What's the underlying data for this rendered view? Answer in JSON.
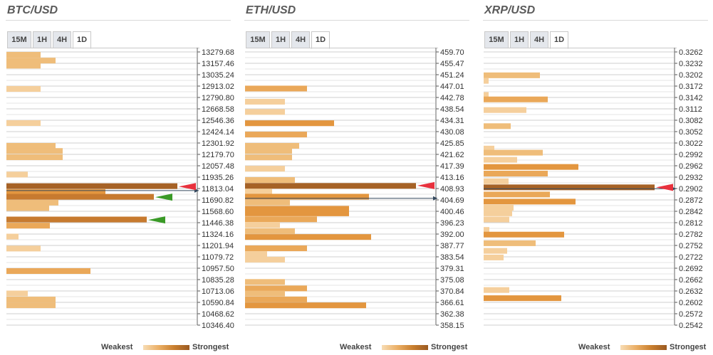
{
  "colors": {
    "levels": [
      "#f5cf9c",
      "#efbd7a",
      "#eaa859",
      "#e3963f",
      "#c77a2f",
      "#a66226"
    ],
    "grid": "#cfcfcf",
    "price_line": "#34495e",
    "arrow_red": "#e8313d",
    "arrow_green": "#3a9a27"
  },
  "legend": {
    "weakest": "Weakest",
    "strongest": "Strongest"
  },
  "panels": [
    {
      "title": "BTC/USD",
      "tabs": [
        "15M",
        "1H",
        "4H",
        "1D"
      ],
      "active_tab": "1D"
    },
    {
      "title": "ETH/USD",
      "tabs": [
        "15M",
        "1H",
        "4H",
        "1D"
      ],
      "active_tab": "1D"
    },
    {
      "title": "XRP/USD",
      "tabs": [
        "15M",
        "1H",
        "4H",
        "1D"
      ],
      "active_tab": "1D"
    }
  ],
  "chart_data": [
    {
      "type": "bar",
      "title": "BTC/USD",
      "orientation": "horizontal",
      "tick_labels": [
        "13279.68",
        "13157.46",
        "13035.24",
        "12913.02",
        "12790.80",
        "12668.58",
        "12546.36",
        "12424.14",
        "12301.92",
        "12179.70",
        "12057.48",
        "11935.26",
        "11813.04",
        "11690.82",
        "11568.60",
        "11446.38",
        "11324.16",
        "11201.94",
        "11079.72",
        "10957.50",
        "10835.28",
        "10713.06",
        "10590.84",
        "10468.62",
        "10346.40"
      ],
      "ylim": [
        10346.4,
        13279.68
      ],
      "xlim": [
        0,
        280
      ],
      "current_price": 11791.0,
      "bars": [
        {
          "price": 13249.1,
          "strength": 48,
          "level": 1
        },
        {
          "price": 13187.1,
          "strength": 69,
          "level": 1
        },
        {
          "price": 13132.1,
          "strength": 48,
          "level": 1
        },
        {
          "price": 12882.5,
          "strength": 48,
          "level": 0
        },
        {
          "price": 12515.8,
          "strength": 48,
          "level": 0
        },
        {
          "price": 12271.3,
          "strength": 69,
          "level": 1
        },
        {
          "price": 12216.3,
          "strength": 79,
          "level": 1
        },
        {
          "price": 12149.1,
          "strength": 79,
          "level": 1
        },
        {
          "price": 11963.3,
          "strength": 30,
          "level": 0
        },
        {
          "price": 11838.6,
          "strength": 240,
          "level": 5
        },
        {
          "price": 11774.5,
          "strength": 139,
          "level": 3
        },
        {
          "price": 11724.3,
          "strength": 207,
          "level": 4
        },
        {
          "price": 11661.6,
          "strength": 73,
          "level": 1
        },
        {
          "price": 11602.9,
          "strength": 60,
          "level": 1
        },
        {
          "price": 11480.7,
          "strength": 197,
          "level": 4
        },
        {
          "price": 11414.7,
          "strength": 61,
          "level": 2
        },
        {
          "price": 11297.4,
          "strength": 17,
          "level": 0
        },
        {
          "price": 11168.7,
          "strength": 48,
          "level": 0
        },
        {
          "price": 10926.9,
          "strength": 118,
          "level": 2
        },
        {
          "price": 10686.5,
          "strength": 30,
          "level": 0
        },
        {
          "price": 10621.3,
          "strength": 69,
          "level": 1
        },
        {
          "price": 10559.6,
          "strength": 69,
          "level": 1
        }
      ],
      "markers": [
        {
          "price": 11834.0,
          "color": "red"
        },
        {
          "price": 11720.0,
          "color": "green"
        },
        {
          "price": 11476.0,
          "color": "green"
        }
      ]
    },
    {
      "type": "bar",
      "title": "ETH/USD",
      "orientation": "horizontal",
      "tick_labels": [
        "459.70",
        "455.47",
        "451.24",
        "447.01",
        "442.78",
        "438.54",
        "434.31",
        "430.08",
        "425.85",
        "421.62",
        "417.39",
        "413.16",
        "408.93",
        "404.69",
        "400.46",
        "396.23",
        "392.00",
        "387.77",
        "383.54",
        "379.31",
        "375.08",
        "370.84",
        "366.61",
        "362.38",
        "358.15"
      ],
      "ylim": [
        358.15,
        459.7
      ],
      "xlim": [
        0,
        280
      ],
      "current_price": 405.28,
      "bars": [
        {
          "price": 446.1,
          "strength": 87,
          "level": 2
        },
        {
          "price": 441.2,
          "strength": 56,
          "level": 0
        },
        {
          "price": 437.4,
          "strength": 56,
          "level": 0
        },
        {
          "price": 433.2,
          "strength": 125,
          "level": 3
        },
        {
          "price": 429.0,
          "strength": 87,
          "level": 2
        },
        {
          "price": 424.8,
          "strength": 76,
          "level": 1
        },
        {
          "price": 422.9,
          "strength": 66,
          "level": 1
        },
        {
          "price": 420.5,
          "strength": 66,
          "level": 1
        },
        {
          "price": 416.3,
          "strength": 56,
          "level": 0
        },
        {
          "price": 412.1,
          "strength": 70,
          "level": 1
        },
        {
          "price": 409.9,
          "strength": 240,
          "level": 5
        },
        {
          "price": 407.8,
          "strength": 38,
          "level": 0
        },
        {
          "price": 405.9,
          "strength": 174,
          "level": 3
        },
        {
          "price": 403.7,
          "strength": 63,
          "level": 1
        },
        {
          "price": 401.4,
          "strength": 146,
          "level": 3
        },
        {
          "price": 399.7,
          "strength": 146,
          "level": 3
        },
        {
          "price": 397.5,
          "strength": 101,
          "level": 2
        },
        {
          "price": 395.4,
          "strength": 49,
          "level": 0
        },
        {
          "price": 393.1,
          "strength": 70,
          "level": 1
        },
        {
          "price": 390.9,
          "strength": 177,
          "level": 3
        },
        {
          "price": 386.7,
          "strength": 87,
          "level": 2
        },
        {
          "price": 384.6,
          "strength": 31,
          "level": 0
        },
        {
          "price": 382.5,
          "strength": 56,
          "level": 0
        },
        {
          "price": 374.2,
          "strength": 56,
          "level": 1
        },
        {
          "price": 371.8,
          "strength": 87,
          "level": 2
        },
        {
          "price": 369.9,
          "strength": 56,
          "level": 1
        },
        {
          "price": 367.7,
          "strength": 87,
          "level": 2
        },
        {
          "price": 365.5,
          "strength": 170,
          "level": 3
        }
      ],
      "markers": [
        {
          "price": 410.0,
          "color": "red"
        }
      ]
    },
    {
      "type": "bar",
      "title": "XRP/USD",
      "orientation": "horizontal",
      "tick_labels": [
        "0.3262",
        "0.3232",
        "0.3202",
        "0.3172",
        "0.3142",
        "0.3112",
        "0.3082",
        "0.3052",
        "0.3022",
        "0.2992",
        "0.2962",
        "0.2932",
        "0.2902",
        "0.2872",
        "0.2842",
        "0.2812",
        "0.2782",
        "0.2752",
        "0.2722",
        "0.2692",
        "0.2662",
        "0.2632",
        "0.2602",
        "0.2572",
        "0.2542"
      ],
      "ylim": [
        0.2542,
        0.3262
      ],
      "xlim": [
        0,
        280
      ],
      "current_price": 0.29015,
      "bars": [
        {
          "price": 0.32004,
          "strength": 79,
          "level": 1
        },
        {
          "price": 0.31858,
          "strength": 7,
          "level": 0
        },
        {
          "price": 0.31486,
          "strength": 7,
          "level": 0
        },
        {
          "price": 0.31369,
          "strength": 90,
          "level": 2
        },
        {
          "price": 0.31088,
          "strength": 60,
          "level": 0
        },
        {
          "price": 0.30664,
          "strength": 38,
          "level": 1
        },
        {
          "price": 0.30073,
          "strength": 15,
          "level": 0
        },
        {
          "price": 0.29965,
          "strength": 83,
          "level": 1
        },
        {
          "price": 0.29777,
          "strength": 47,
          "level": 0
        },
        {
          "price": 0.29589,
          "strength": 133,
          "level": 3
        },
        {
          "price": 0.29414,
          "strength": 90,
          "level": 2
        },
        {
          "price": 0.29212,
          "strength": 35,
          "level": 0
        },
        {
          "price": 0.29051,
          "strength": 240,
          "level": 5
        },
        {
          "price": 0.28863,
          "strength": 93,
          "level": 2
        },
        {
          "price": 0.28675,
          "strength": 129,
          "level": 3
        },
        {
          "price": 0.28514,
          "strength": 42,
          "level": 0
        },
        {
          "price": 0.28366,
          "strength": 40,
          "level": 0
        },
        {
          "price": 0.28205,
          "strength": 36,
          "level": 0
        },
        {
          "price": 0.27929,
          "strength": 8,
          "level": 0
        },
        {
          "price": 0.27806,
          "strength": 113,
          "level": 3
        },
        {
          "price": 0.27578,
          "strength": 73,
          "level": 1
        },
        {
          "price": 0.27377,
          "strength": 33,
          "level": 0
        },
        {
          "price": 0.27203,
          "strength": 28,
          "level": 0
        },
        {
          "price": 0.26345,
          "strength": 36,
          "level": 0
        },
        {
          "price": 0.2613,
          "strength": 109,
          "level": 3
        }
      ],
      "markers": [
        {
          "price": 0.2905,
          "color": "red"
        }
      ]
    }
  ]
}
